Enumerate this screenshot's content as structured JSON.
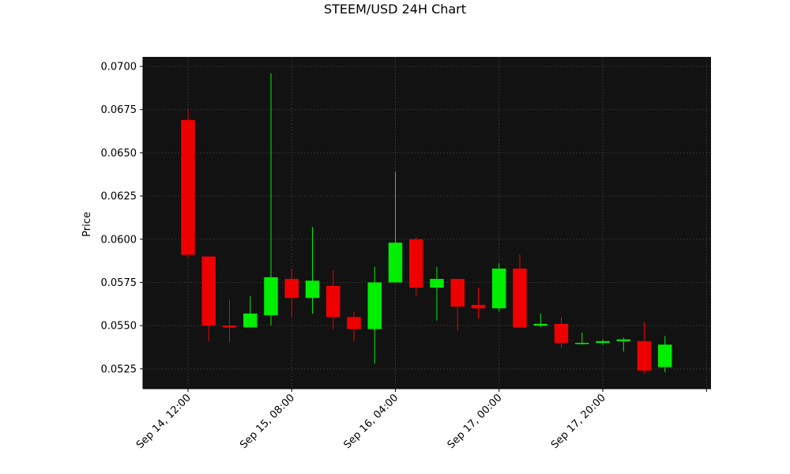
{
  "chart_data": {
    "type": "candlestick",
    "title": "STEEM/USD 24H Chart",
    "ylabel": "Price",
    "xlabel": "",
    "ylim": [
      0.05135,
      0.07055
    ],
    "y_ticks": [
      0.0525,
      0.055,
      0.0575,
      0.06,
      0.0625,
      0.065,
      0.0675,
      0.07
    ],
    "y_tick_labels": [
      "0.0525",
      "0.0550",
      "0.0575",
      "0.0600",
      "0.0625",
      "0.0650",
      "0.0675",
      "0.0700"
    ],
    "x_tick_labels": [
      "Sep 14, 12:00",
      "Sep 15, 08:00",
      "Sep 16, 04:00",
      "Sep 17, 00:00",
      "Sep 17, 20:00",
      ""
    ],
    "x_tick_index": [
      0,
      5,
      10,
      15,
      20,
      25
    ],
    "up_color": "#00ee00",
    "down_color": "#ee0000",
    "background_color": "#121212",
    "grid": true,
    "candles": [
      {
        "open": 0.0669,
        "high": 0.0675,
        "low": 0.0589,
        "close": 0.0591
      },
      {
        "open": 0.059,
        "high": 0.059,
        "low": 0.0541,
        "close": 0.055
      },
      {
        "open": 0.055,
        "high": 0.0565,
        "low": 0.054,
        "close": 0.0549
      },
      {
        "open": 0.0549,
        "high": 0.0567,
        "low": 0.0549,
        "close": 0.0557
      },
      {
        "open": 0.0556,
        "high": 0.0696,
        "low": 0.055,
        "close": 0.0578
      },
      {
        "open": 0.0577,
        "high": 0.0583,
        "low": 0.0555,
        "close": 0.0566
      },
      {
        "open": 0.0566,
        "high": 0.0607,
        "low": 0.0557,
        "close": 0.0576
      },
      {
        "open": 0.0573,
        "high": 0.0582,
        "low": 0.0548,
        "close": 0.0555
      },
      {
        "open": 0.0555,
        "high": 0.0558,
        "low": 0.0541,
        "close": 0.0548
      },
      {
        "open": 0.0548,
        "high": 0.0584,
        "low": 0.0528,
        "close": 0.0575
      },
      {
        "open": 0.0575,
        "high": 0.0639,
        "low": 0.0575,
        "close": 0.0598
      },
      {
        "open": 0.06,
        "high": 0.0601,
        "low": 0.0567,
        "close": 0.0572
      },
      {
        "open": 0.0572,
        "high": 0.0584,
        "low": 0.0553,
        "close": 0.0577
      },
      {
        "open": 0.0577,
        "high": 0.0577,
        "low": 0.0547,
        "close": 0.0561
      },
      {
        "open": 0.0562,
        "high": 0.0572,
        "low": 0.0554,
        "close": 0.056
      },
      {
        "open": 0.056,
        "high": 0.0586,
        "low": 0.0558,
        "close": 0.0583
      },
      {
        "open": 0.0583,
        "high": 0.0591,
        "low": 0.0549,
        "close": 0.0549
      },
      {
        "open": 0.055,
        "high": 0.0557,
        "low": 0.0549,
        "close": 0.0551
      },
      {
        "open": 0.0551,
        "high": 0.0555,
        "low": 0.0537,
        "close": 0.054
      },
      {
        "open": 0.054,
        "high": 0.0546,
        "low": 0.0539,
        "close": 0.054
      },
      {
        "open": 0.054,
        "high": 0.0542,
        "low": 0.0539,
        "close": 0.0541
      },
      {
        "open": 0.0541,
        "high": 0.0543,
        "low": 0.0535,
        "close": 0.0542
      },
      {
        "open": 0.0541,
        "high": 0.0552,
        "low": 0.0522,
        "close": 0.0524
      },
      {
        "open": 0.0526,
        "high": 0.0544,
        "low": 0.0523,
        "close": 0.0539
      }
    ]
  }
}
